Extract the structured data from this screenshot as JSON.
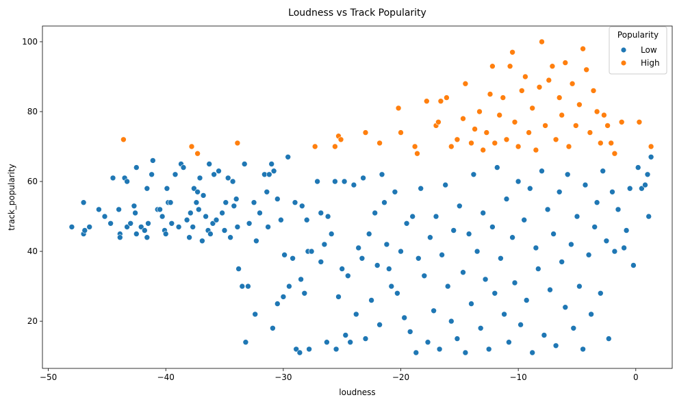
{
  "chart_data": {
    "type": "scatter",
    "title": "Loudness vs Track Popularity",
    "xlabel": "loudness",
    "ylabel": "track_popularity",
    "xlim": [
      -50.5,
      3.1
    ],
    "ylim": [
      6.5,
      104.5
    ],
    "xticks": [
      -50,
      -40,
      -30,
      -20,
      -10,
      0
    ],
    "xtick_labels": [
      "−50",
      "−40",
      "−30",
      "−20",
      "−10",
      "0"
    ],
    "yticks": [
      20,
      40,
      60,
      80,
      100
    ],
    "ytick_labels": [
      "20",
      "40",
      "60",
      "80",
      "100"
    ],
    "grid": false,
    "legend": {
      "title": "Popularity",
      "placement": "top-right",
      "entries": [
        {
          "label": "Low",
          "color": "#1f77b4"
        },
        {
          "label": "High",
          "color": "#ff7f0e"
        }
      ]
    },
    "series": [
      {
        "name": "Low",
        "color": "#1f77b4",
        "points": [
          [
            -48.0,
            47
          ],
          [
            -47.0,
            45
          ],
          [
            -46.9,
            46
          ],
          [
            -46.5,
            47
          ],
          [
            -47.0,
            54
          ],
          [
            -45.7,
            52
          ],
          [
            -45.2,
            50
          ],
          [
            -44.7,
            48
          ],
          [
            -44.5,
            61
          ],
          [
            -44.0,
            52
          ],
          [
            -43.9,
            45
          ],
          [
            -43.9,
            44
          ],
          [
            -43.5,
            61
          ],
          [
            -43.3,
            60
          ],
          [
            -43.3,
            47
          ],
          [
            -43.0,
            48
          ],
          [
            -42.7,
            53
          ],
          [
            -42.6,
            51
          ],
          [
            -42.5,
            45
          ],
          [
            -42.5,
            64
          ],
          [
            -42.1,
            47
          ],
          [
            -41.8,
            46
          ],
          [
            -41.6,
            44
          ],
          [
            -41.6,
            58
          ],
          [
            -41.5,
            48
          ],
          [
            -41.2,
            62
          ],
          [
            -41.1,
            66
          ],
          [
            -40.7,
            52
          ],
          [
            -40.5,
            52
          ],
          [
            -40.3,
            50
          ],
          [
            -40.1,
            46
          ],
          [
            -40.0,
            45
          ],
          [
            -39.9,
            58
          ],
          [
            -39.8,
            54
          ],
          [
            -39.6,
            54
          ],
          [
            -39.5,
            48
          ],
          [
            -39.2,
            62
          ],
          [
            -38.9,
            47
          ],
          [
            -38.7,
            65
          ],
          [
            -38.5,
            64
          ],
          [
            -38.2,
            49
          ],
          [
            -38.0,
            44
          ],
          [
            -37.9,
            51
          ],
          [
            -37.7,
            47
          ],
          [
            -37.6,
            58
          ],
          [
            -37.4,
            54
          ],
          [
            -37.3,
            57
          ],
          [
            -37.2,
            52
          ],
          [
            -37.1,
            61
          ],
          [
            -36.9,
            43
          ],
          [
            -36.8,
            56
          ],
          [
            -36.6,
            50
          ],
          [
            -36.4,
            46
          ],
          [
            -36.3,
            65
          ],
          [
            -36.2,
            45
          ],
          [
            -36.0,
            48
          ],
          [
            -35.9,
            62
          ],
          [
            -35.7,
            49
          ],
          [
            -35.5,
            63
          ],
          [
            -35.2,
            51
          ],
          [
            -35.0,
            46
          ],
          [
            -34.9,
            54
          ],
          [
            -34.7,
            61
          ],
          [
            -34.5,
            44
          ],
          [
            -34.3,
            60
          ],
          [
            -34.2,
            53
          ],
          [
            -34.0,
            55
          ],
          [
            -33.9,
            47
          ],
          [
            -33.8,
            35
          ],
          [
            -33.5,
            30
          ],
          [
            -33.3,
            65
          ],
          [
            -33.2,
            14
          ],
          [
            -33.0,
            30
          ],
          [
            -32.9,
            48
          ],
          [
            -32.5,
            54
          ],
          [
            -32.4,
            22
          ],
          [
            -32.3,
            43
          ],
          [
            -32.0,
            51
          ],
          [
            -31.6,
            62
          ],
          [
            -31.4,
            57
          ],
          [
            -31.3,
            47
          ],
          [
            -31.2,
            62
          ],
          [
            -31.0,
            65
          ],
          [
            -30.9,
            18
          ],
          [
            -30.8,
            63
          ],
          [
            -30.5,
            55
          ],
          [
            -30.5,
            25
          ],
          [
            -30.2,
            49
          ],
          [
            -30.0,
            27
          ],
          [
            -29.9,
            39
          ],
          [
            -29.6,
            67
          ],
          [
            -29.5,
            30
          ],
          [
            -29.2,
            38
          ],
          [
            -29.0,
            54
          ],
          [
            -28.9,
            12
          ],
          [
            -28.6,
            11
          ],
          [
            -28.5,
            32
          ],
          [
            -28.4,
            53
          ],
          [
            -28.2,
            28
          ],
          [
            -28.0,
            49
          ],
          [
            -27.9,
            40
          ],
          [
            -27.8,
            12
          ],
          [
            -27.6,
            40
          ],
          [
            -27.1,
            60
          ],
          [
            -26.8,
            51
          ],
          [
            -26.8,
            37
          ],
          [
            -26.5,
            42
          ],
          [
            -26.3,
            14
          ],
          [
            -26.2,
            50
          ],
          [
            -25.9,
            45
          ],
          [
            -25.6,
            60
          ],
          [
            -25.5,
            12
          ],
          [
            -25.3,
            27
          ],
          [
            -25.0,
            35
          ],
          [
            -24.8,
            60
          ],
          [
            -24.7,
            16
          ],
          [
            -24.5,
            33
          ],
          [
            -24.3,
            14
          ],
          [
            -24.0,
            59
          ],
          [
            -23.8,
            22
          ],
          [
            -23.6,
            41
          ],
          [
            -23.3,
            38
          ],
          [
            -23.2,
            61
          ],
          [
            -23.0,
            15
          ],
          [
            -22.7,
            45
          ],
          [
            -22.5,
            26
          ],
          [
            -22.2,
            51
          ],
          [
            -22.0,
            36
          ],
          [
            -21.8,
            19
          ],
          [
            -21.6,
            62
          ],
          [
            -21.4,
            54
          ],
          [
            -21.2,
            42
          ],
          [
            -21.0,
            35
          ],
          [
            -20.8,
            30
          ],
          [
            -20.5,
            57
          ],
          [
            -20.3,
            28
          ],
          [
            -20.0,
            40
          ],
          [
            -19.7,
            21
          ],
          [
            -19.5,
            48
          ],
          [
            -19.2,
            17
          ],
          [
            -19.0,
            50
          ],
          [
            -18.7,
            11
          ],
          [
            -18.5,
            38
          ],
          [
            -18.3,
            58
          ],
          [
            -18.0,
            33
          ],
          [
            -17.7,
            14
          ],
          [
            -17.5,
            44
          ],
          [
            -17.2,
            23
          ],
          [
            -17.0,
            50
          ],
          [
            -16.7,
            12
          ],
          [
            -16.5,
            39
          ],
          [
            -16.2,
            59
          ],
          [
            -16.0,
            30
          ],
          [
            -15.7,
            20
          ],
          [
            -15.5,
            46
          ],
          [
            -15.2,
            15
          ],
          [
            -15.0,
            53
          ],
          [
            -14.7,
            34
          ],
          [
            -14.5,
            11
          ],
          [
            -14.2,
            45
          ],
          [
            -14.0,
            25
          ],
          [
            -13.8,
            62
          ],
          [
            -13.5,
            40
          ],
          [
            -13.2,
            18
          ],
          [
            -13.0,
            51
          ],
          [
            -12.8,
            32
          ],
          [
            -12.5,
            12
          ],
          [
            -12.2,
            47
          ],
          [
            -12.0,
            28
          ],
          [
            -11.8,
            64
          ],
          [
            -11.5,
            38
          ],
          [
            -11.2,
            22
          ],
          [
            -11.0,
            55
          ],
          [
            -10.8,
            14
          ],
          [
            -10.5,
            44
          ],
          [
            -10.3,
            31
          ],
          [
            -10.0,
            60
          ],
          [
            -9.8,
            19
          ],
          [
            -9.5,
            49
          ],
          [
            -9.3,
            26
          ],
          [
            -9.0,
            58
          ],
          [
            -8.8,
            11
          ],
          [
            -8.5,
            41
          ],
          [
            -8.3,
            35
          ],
          [
            -8.0,
            63
          ],
          [
            -7.8,
            16
          ],
          [
            -7.5,
            52
          ],
          [
            -7.3,
            29
          ],
          [
            -7.0,
            45
          ],
          [
            -6.8,
            13
          ],
          [
            -6.5,
            57
          ],
          [
            -6.3,
            37
          ],
          [
            -6.0,
            24
          ],
          [
            -5.8,
            62
          ],
          [
            -5.5,
            42
          ],
          [
            -5.3,
            18
          ],
          [
            -5.0,
            50
          ],
          [
            -4.8,
            30
          ],
          [
            -4.5,
            12
          ],
          [
            -4.3,
            59
          ],
          [
            -4.0,
            39
          ],
          [
            -3.8,
            22
          ],
          [
            -3.5,
            47
          ],
          [
            -3.3,
            54
          ],
          [
            -3.0,
            28
          ],
          [
            -2.8,
            63
          ],
          [
            -2.5,
            43
          ],
          [
            -2.3,
            15
          ],
          [
            -2.0,
            57
          ],
          [
            -1.8,
            40
          ],
          [
            -1.5,
            52
          ],
          [
            -1.0,
            41
          ],
          [
            -0.8,
            46
          ],
          [
            -0.5,
            58
          ],
          [
            -0.2,
            36
          ],
          [
            0.2,
            64
          ],
          [
            0.5,
            58
          ],
          [
            0.8,
            59
          ],
          [
            1.0,
            62
          ],
          [
            1.1,
            50
          ],
          [
            1.3,
            67
          ]
        ]
      },
      {
        "name": "High",
        "color": "#ff7f0e",
        "points": [
          [
            -43.6,
            72
          ],
          [
            -37.8,
            70
          ],
          [
            -37.3,
            68
          ],
          [
            -33.9,
            71
          ],
          [
            -27.3,
            70
          ],
          [
            -25.6,
            70
          ],
          [
            -25.3,
            73
          ],
          [
            -25.1,
            72
          ],
          [
            -23.0,
            74
          ],
          [
            -21.8,
            71
          ],
          [
            -20.2,
            81
          ],
          [
            -20.0,
            74
          ],
          [
            -18.8,
            70
          ],
          [
            -18.6,
            68
          ],
          [
            -17.8,
            83
          ],
          [
            -17.0,
            76
          ],
          [
            -16.8,
            77
          ],
          [
            -16.6,
            83
          ],
          [
            -16.1,
            84
          ],
          [
            -15.7,
            70
          ],
          [
            -15.2,
            72
          ],
          [
            -14.7,
            78
          ],
          [
            -14.5,
            88
          ],
          [
            -14.0,
            71
          ],
          [
            -13.7,
            75
          ],
          [
            -13.3,
            80
          ],
          [
            -13.0,
            69
          ],
          [
            -12.7,
            74
          ],
          [
            -12.4,
            85
          ],
          [
            -12.2,
            93
          ],
          [
            -12.0,
            71
          ],
          [
            -11.6,
            79
          ],
          [
            -11.3,
            84
          ],
          [
            -11.0,
            72
          ],
          [
            -10.7,
            93
          ],
          [
            -10.5,
            97
          ],
          [
            -10.3,
            77
          ],
          [
            -10.0,
            70
          ],
          [
            -9.7,
            86
          ],
          [
            -9.4,
            90
          ],
          [
            -9.1,
            74
          ],
          [
            -8.8,
            81
          ],
          [
            -8.5,
            69
          ],
          [
            -8.2,
            87
          ],
          [
            -8.0,
            100
          ],
          [
            -7.7,
            76
          ],
          [
            -7.4,
            89
          ],
          [
            -7.1,
            93
          ],
          [
            -6.8,
            72
          ],
          [
            -6.5,
            84
          ],
          [
            -6.3,
            79
          ],
          [
            -6.0,
            94
          ],
          [
            -5.7,
            70
          ],
          [
            -5.4,
            88
          ],
          [
            -5.1,
            76
          ],
          [
            -4.8,
            82
          ],
          [
            -4.5,
            98
          ],
          [
            -4.2,
            92
          ],
          [
            -3.9,
            74
          ],
          [
            -3.6,
            86
          ],
          [
            -3.3,
            80
          ],
          [
            -3.0,
            71
          ],
          [
            -2.7,
            79
          ],
          [
            -2.4,
            76
          ],
          [
            -2.1,
            71
          ],
          [
            -1.8,
            68
          ],
          [
            -1.2,
            77
          ],
          [
            0.3,
            77
          ],
          [
            1.3,
            70
          ]
        ]
      }
    ]
  }
}
